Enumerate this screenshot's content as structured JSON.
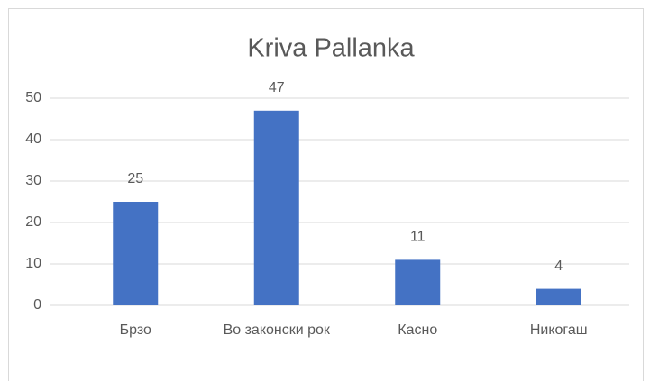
{
  "chart_data": {
    "type": "bar",
    "title": "Kriva Pallanka",
    "categories": [
      "Брзо",
      "Во законски рок",
      "Касно",
      "Никогаш"
    ],
    "values": [
      25,
      47,
      11,
      4
    ],
    "color": "#4472c4",
    "ylim": [
      0,
      50
    ],
    "yticks": [
      0,
      10,
      20,
      30,
      40,
      50
    ],
    "grid": true
  }
}
